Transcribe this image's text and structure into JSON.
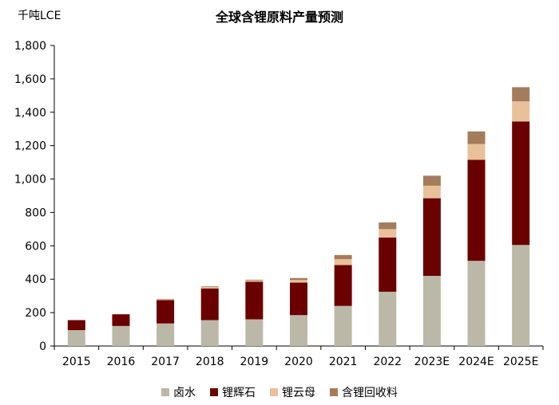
{
  "chart_data": {
    "type": "bar",
    "stacked": true,
    "title": "全球含锂原料产量预测",
    "unit_label": "千吨LCE",
    "categories": [
      "2015",
      "2016",
      "2017",
      "2018",
      "2019",
      "2020",
      "2021",
      "2022",
      "2023E",
      "2024E",
      "2025E"
    ],
    "ylim": [
      0,
      1800
    ],
    "yticks": [
      0,
      200,
      400,
      600,
      800,
      1000,
      1200,
      1400,
      1600,
      1800
    ],
    "ytick_labels": [
      "0",
      "200",
      "400",
      "600",
      "800",
      "1,000",
      "1,200",
      "1,400",
      "1,600",
      "1,800"
    ],
    "grid": false,
    "legend_position": "bottom",
    "series": [
      {
        "name": "卤水",
        "color": "#bcb8a7",
        "values": [
          95,
          120,
          135,
          155,
          160,
          185,
          240,
          325,
          420,
          510,
          605
        ]
      },
      {
        "name": "锂辉石",
        "color": "#6a0000",
        "values": [
          60,
          70,
          140,
          190,
          225,
          195,
          245,
          325,
          465,
          605,
          740
        ]
      },
      {
        "name": "锂云母",
        "color": "#e8c19a",
        "values": [
          0,
          0,
          5,
          8,
          8,
          15,
          35,
          50,
          75,
          95,
          120
        ]
      },
      {
        "name": "含锂回收料",
        "color": "#a57c5b",
        "values": [
          0,
          0,
          2,
          4,
          4,
          12,
          25,
          40,
          60,
          75,
          85
        ]
      }
    ]
  }
}
